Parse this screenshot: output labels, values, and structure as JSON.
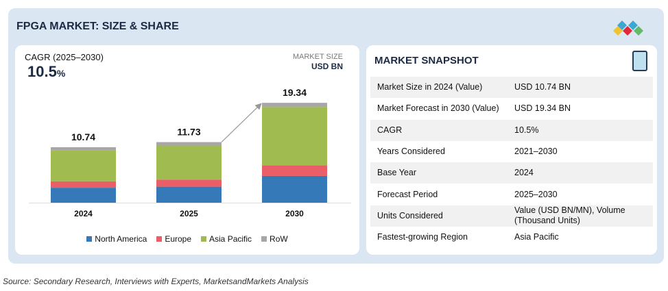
{
  "title": "FPGA MARKET: SIZE & SHARE",
  "cagr": {
    "label": "CAGR (2025–2030)",
    "value": "10.5",
    "unit": "%"
  },
  "market_size": {
    "label": "MARKET SIZE",
    "unit": "USD BN"
  },
  "chart_data": {
    "type": "bar",
    "stacked": true,
    "categories": [
      "2024",
      "2025",
      "2030"
    ],
    "totals": [
      "10.74",
      "11.73",
      "19.34"
    ],
    "series": [
      {
        "name": "North America",
        "color": "#3579b8",
        "values": [
          2.9,
          3.1,
          5.18
        ]
      },
      {
        "name": "Europe",
        "color": "#ea5f67",
        "values": [
          1.24,
          1.37,
          2.08
        ]
      },
      {
        "name": "Asia Pacific",
        "color": "#a0bb50",
        "values": [
          5.98,
          6.6,
          11.28
        ]
      },
      {
        "name": "RoW",
        "color": "#a8a6a6",
        "values": [
          0.62,
          0.66,
          0.8
        ]
      }
    ],
    "legend": "bottom",
    "grid": false
  },
  "snapshot": {
    "title": "MARKET SNAPSHOT",
    "rows": [
      [
        "Market Size in 2024 (Value)",
        "USD 10.74 BN"
      ],
      [
        "Market Forecast in 2030 (Value)",
        "USD 19.34 BN"
      ],
      [
        "CAGR",
        "10.5%"
      ],
      [
        "Years Considered",
        "2021–2030"
      ],
      [
        "Base Year",
        "2024"
      ],
      [
        "Forecast Period",
        "2025–2030"
      ],
      [
        "Units Considered",
        "Value (USD BN/MN), Volume (Thousand Units)"
      ],
      [
        "Fastest-growing Region",
        "Asia Pacific"
      ]
    ]
  },
  "source": "Source: Secondary Research, Interviews with Experts, MarketsandMarkets Analysis"
}
